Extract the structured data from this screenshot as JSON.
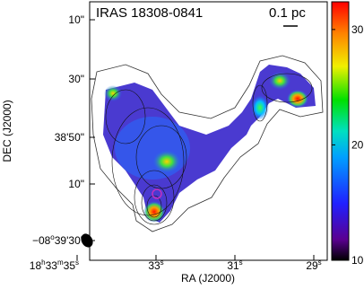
{
  "chart_data": {
    "type": "map",
    "title": "IRAS 18308-0841",
    "scale_label": "0.1 pc",
    "x_label": "RA (J2000)",
    "y_label": "DEC (J2000)",
    "xticks": [
      [
        "18",
        "h",
        "33",
        "m",
        "35",
        "s"
      ],
      [
        "33",
        "s"
      ],
      [
        "31",
        "s"
      ],
      [
        "29",
        "s"
      ]
    ],
    "yticks": [
      [
        "10\""
      ],
      [
        "30\""
      ],
      [
        "38'50\""
      ],
      [
        "10\""
      ],
      [
        "−08",
        "o",
        "39'30\""
      ]
    ],
    "colorbar": {
      "lim": [
        10,
        32.4
      ],
      "ticks": [
        10,
        20,
        30
      ]
    }
  }
}
